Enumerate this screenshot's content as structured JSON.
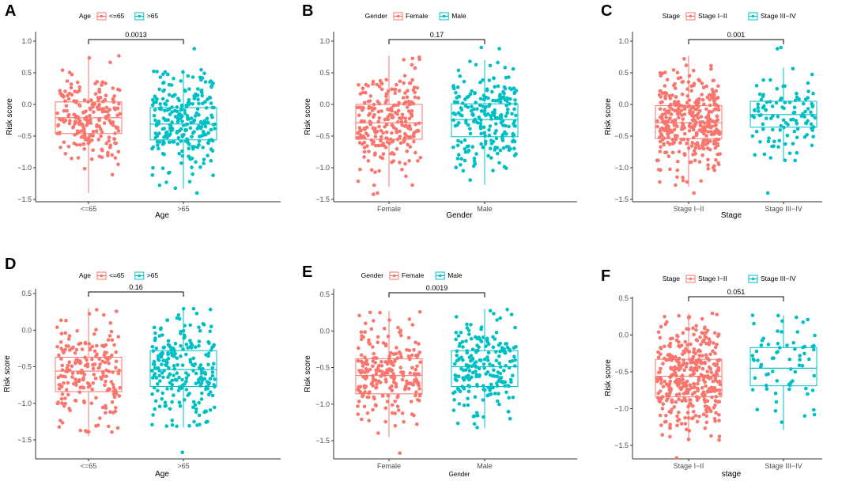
{
  "colors": {
    "red": "#F8766D",
    "teal": "#00BFC4"
  },
  "chart_data": [
    {
      "type": "box",
      "panel": "A",
      "legend_title": "Age",
      "legend_items": [
        "<=65",
        ">65"
      ],
      "categories": [
        "<=65",
        ">65"
      ],
      "xlabel": "Age",
      "ylabel": "Risk score",
      "yticks": [
        -1.5,
        -1.0,
        -0.5,
        0.0,
        0.5,
        1.0
      ],
      "ytick_labels": [
        "−1.5",
        "−1.0",
        "−0.5",
        "0.0",
        "0.5",
        "1.0"
      ],
      "ylim": [
        -1.5,
        1.1
      ],
      "pvalue": "0.0013",
      "boxes": [
        {
          "q1": -0.46,
          "median": -0.21,
          "q3": 0.04,
          "whisker_low": -1.4,
          "whisker_high": 0.77,
          "n": 220
        },
        {
          "q1": -0.56,
          "median": -0.31,
          "q3": -0.05,
          "whisker_low": -1.33,
          "whisker_high": 0.55,
          "n": 260
        }
      ],
      "outliers": [
        [],
        [
          0.88,
          -1.4
        ]
      ]
    },
    {
      "type": "box",
      "panel": "B",
      "legend_title": "Gender",
      "legend_items": [
        "Female",
        "Male"
      ],
      "categories": [
        "Female",
        "Male"
      ],
      "xlabel": "Gender",
      "ylabel": "Risk score",
      "yticks": [
        -1.5,
        -1.0,
        -0.5,
        0.0,
        0.5,
        1.0
      ],
      "ytick_labels": [
        "−1.5",
        "−1.0",
        "−0.5",
        "0.0",
        "0.5",
        "1.0"
      ],
      "ylim": [
        -1.5,
        1.1
      ],
      "pvalue": "0.17",
      "boxes": [
        {
          "q1": -0.55,
          "median": -0.29,
          "q3": 0.0,
          "whisker_low": -1.3,
          "whisker_high": 0.77,
          "n": 250
        },
        {
          "q1": -0.51,
          "median": -0.24,
          "q3": 0.01,
          "whisker_low": -1.27,
          "whisker_high": 0.7,
          "n": 230
        }
      ],
      "outliers": [
        [
          -1.4,
          -1.42
        ],
        [
          0.9,
          0.88
        ]
      ]
    },
    {
      "type": "box",
      "panel": "C",
      "legend_title": "Stage",
      "legend_items": [
        "Stage I−II",
        "Stage III−IV"
      ],
      "categories": [
        "Stage I−II",
        "Stage III−IV"
      ],
      "xlabel": "Stage",
      "ylabel": "Risk score",
      "yticks": [
        -1.5,
        -1.0,
        -0.5,
        0.0,
        0.5,
        1.0
      ],
      "ytick_labels": [
        "−1.5",
        "−1.0",
        "−0.5",
        "0.0",
        "0.5",
        "1.0"
      ],
      "ylim": [
        -1.5,
        1.1
      ],
      "pvalue": "0.001",
      "boxes": [
        {
          "q1": -0.54,
          "median": -0.29,
          "q3": -0.02,
          "whisker_low": -1.3,
          "whisker_high": 0.77,
          "n": 360
        },
        {
          "q1": -0.36,
          "median": -0.16,
          "q3": 0.05,
          "whisker_low": -0.9,
          "whisker_high": 0.58,
          "n": 110
        }
      ],
      "outliers": [
        [
          -1.4
        ],
        [
          0.9,
          0.88,
          -1.4
        ]
      ]
    },
    {
      "type": "box",
      "panel": "D",
      "legend_title": "Age",
      "legend_items": [
        "<=65",
        ">65"
      ],
      "categories": [
        "<=65",
        ">65"
      ],
      "xlabel": "Age",
      "ylabel": "Risk score",
      "yticks": [
        -1.5,
        -1.0,
        -0.5,
        0.0,
        0.5
      ],
      "ytick_labels": [
        "−1.5",
        "−1.0",
        "−0.5",
        "0.0",
        "0.5"
      ],
      "ylim": [
        -1.75,
        0.55
      ],
      "pvalue": "0.16",
      "boxes": [
        {
          "q1": -0.84,
          "median": -0.56,
          "q3": -0.37,
          "whisker_low": -1.45,
          "whisker_high": 0.3,
          "n": 200
        },
        {
          "q1": -0.77,
          "median": -0.54,
          "q3": -0.28,
          "whisker_low": -1.33,
          "whisker_high": 0.3,
          "n": 230
        }
      ],
      "outliers": [
        [],
        [
          -1.67
        ]
      ]
    },
    {
      "type": "box",
      "panel": "E",
      "legend_title": "Gender",
      "legend_items": [
        "Female",
        "Male"
      ],
      "categories": [
        "Female",
        "Male"
      ],
      "xlabel": "Gender",
      "ylabel": "Risk score",
      "yticks": [
        -1.5,
        -1.0,
        -0.5,
        0.0,
        0.5
      ],
      "ytick_labels": [
        "−1.5",
        "−1.0",
        "−0.5",
        "0.0",
        "0.5"
      ],
      "ylim": [
        -1.75,
        0.55
      ],
      "pvalue": "0.0019",
      "boxes": [
        {
          "q1": -0.86,
          "median": -0.61,
          "q3": -0.38,
          "whisker_low": -1.45,
          "whisker_high": 0.27,
          "n": 230
        },
        {
          "q1": -0.76,
          "median": -0.49,
          "q3": -0.27,
          "whisker_low": -1.33,
          "whisker_high": 0.3,
          "n": 210
        }
      ],
      "outliers": [
        [
          -1.67
        ],
        []
      ]
    },
    {
      "type": "box",
      "panel": "F",
      "legend_title": "Stage",
      "legend_items": [
        "Stage I−II",
        "Stage III−IV"
      ],
      "categories": [
        "Stage I−II",
        "Stage III−IV"
      ],
      "xlabel": "stage",
      "ylabel": "Risk score",
      "yticks": [
        -1.5,
        -1.0,
        -0.5,
        0.0,
        0.5
      ],
      "ytick_labels": [
        "−1.5",
        "−1.0",
        "−0.5",
        "0.0",
        "0.5"
      ],
      "ylim": [
        -1.75,
        0.55
      ],
      "pvalue": "0.051",
      "boxes": [
        {
          "q1": -0.84,
          "median": -0.56,
          "q3": -0.33,
          "whisker_low": -1.45,
          "whisker_high": 0.3,
          "n": 380
        },
        {
          "q1": -0.69,
          "median": -0.45,
          "q3": -0.17,
          "whisker_low": -1.29,
          "whisker_high": 0.27,
          "n": 70
        }
      ],
      "outliers": [
        [
          -1.67
        ],
        []
      ]
    }
  ]
}
